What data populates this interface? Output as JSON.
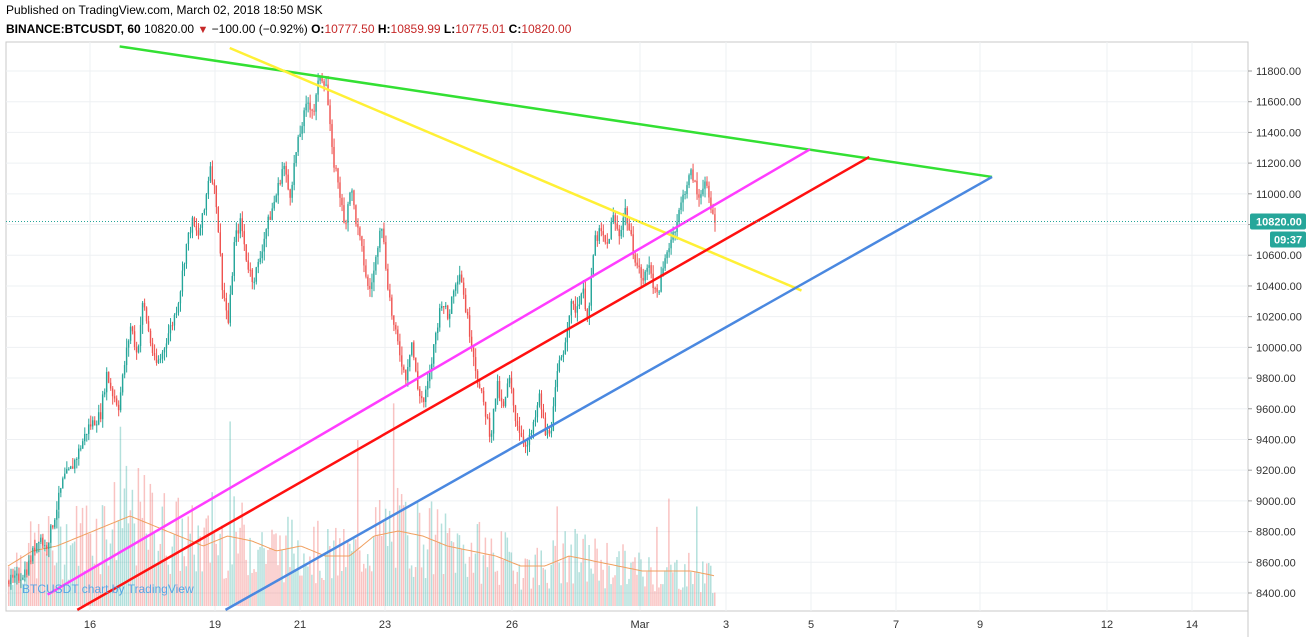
{
  "header": {
    "published": "Published on TradingView.com, March 02, 2018 18:50 MSK",
    "symbol": "BINANCE:BTCUSDT, 60",
    "last": "10820.00",
    "change_arrow": "▼",
    "change": "−100.00 (−0.92%)",
    "o_label": "O:",
    "o_value": "10777.50",
    "h_label": "H:",
    "h_value": "10859.99",
    "l_label": "L:",
    "l_value": "10775.01",
    "c_label": "C:",
    "c_value": "10820.00"
  },
  "watermark": "BTCUSDT chart by TradingView",
  "price_badge": {
    "value": "10820.00",
    "countdown": "09:37",
    "color": "#26a69a"
  },
  "chart_data": {
    "type": "candlestick",
    "timeframe": "60",
    "x_tick_labels": [
      "16",
      "19",
      "21",
      "23",
      "26",
      "Mar",
      "3",
      "5",
      "7",
      "9",
      "12",
      "14"
    ],
    "y_tick_labels": [
      "11800.00",
      "11600.00",
      "11400.00",
      "11200.00",
      "11000.00",
      "10800.00",
      "10600.00",
      "10400.00",
      "10200.00",
      "10000.00",
      "9800.00",
      "9600.00",
      "9400.00",
      "9200.00",
      "9000.00",
      "8800.00",
      "8600.00",
      "8400.00"
    ],
    "ylim": [
      8300,
      11950
    ],
    "last_price": 10820,
    "colors": {
      "up": "#26a69a",
      "down": "#ef5350",
      "volume_ma": "#f0a060"
    },
    "price_path": [
      [
        1,
        8480
      ],
      [
        3,
        8560
      ],
      [
        5,
        8780
      ],
      [
        6,
        8690
      ],
      [
        7,
        8820
      ],
      [
        9,
        9150
      ],
      [
        10,
        9190
      ],
      [
        11,
        9280
      ],
      [
        12,
        9380
      ],
      [
        13,
        9480
      ],
      [
        15,
        9560
      ],
      [
        16,
        9830
      ],
      [
        17,
        9700
      ],
      [
        18,
        9620
      ],
      [
        19,
        9900
      ],
      [
        20,
        10150
      ],
      [
        21,
        9950
      ],
      [
        22,
        10300
      ],
      [
        23,
        10080
      ],
      [
        24,
        9880
      ],
      [
        25,
        9940
      ],
      [
        26,
        10080
      ],
      [
        27,
        10180
      ],
      [
        28,
        10350
      ],
      [
        29,
        10650
      ],
      [
        30,
        10820
      ],
      [
        31,
        10720
      ],
      [
        32,
        10880
      ],
      [
        33,
        11200
      ],
      [
        34,
        10950
      ],
      [
        35,
        10400
      ],
      [
        36,
        10150
      ],
      [
        37,
        10700
      ],
      [
        38,
        10820
      ],
      [
        39,
        10560
      ],
      [
        40,
        10440
      ],
      [
        41,
        10550
      ],
      [
        42,
        10750
      ],
      [
        43,
        10880
      ],
      [
        44,
        11020
      ],
      [
        45,
        11200
      ],
      [
        46,
        10980
      ],
      [
        47,
        11250
      ],
      [
        48,
        11450
      ],
      [
        49,
        11600
      ],
      [
        50,
        11540
      ],
      [
        51,
        11780
      ],
      [
        52,
        11720
      ],
      [
        53,
        11250
      ],
      [
        54,
        11080
      ],
      [
        55,
        10780
      ],
      [
        56,
        11060
      ],
      [
        57,
        10800
      ],
      [
        58,
        10600
      ],
      [
        59,
        10350
      ],
      [
        60,
        10520
      ],
      [
        61,
        10860
      ],
      [
        62,
        10450
      ],
      [
        63,
        10150
      ],
      [
        64,
        9980
      ],
      [
        65,
        9800
      ],
      [
        66,
        10050
      ],
      [
        67,
        9730
      ],
      [
        68,
        9640
      ],
      [
        69,
        9820
      ],
      [
        70,
        10100
      ],
      [
        71,
        10320
      ],
      [
        72,
        10180
      ],
      [
        73,
        10420
      ],
      [
        74,
        10500
      ],
      [
        75,
        10220
      ],
      [
        76,
        10000
      ],
      [
        77,
        9750
      ],
      [
        78,
        9600
      ],
      [
        79,
        9420
      ],
      [
        80,
        9760
      ],
      [
        81,
        9580
      ],
      [
        82,
        9800
      ],
      [
        83,
        9550
      ],
      [
        84,
        9430
      ],
      [
        85,
        9360
      ],
      [
        86,
        9480
      ],
      [
        87,
        9680
      ],
      [
        88,
        9420
      ],
      [
        89,
        9500
      ],
      [
        90,
        9850
      ],
      [
        91,
        10000
      ],
      [
        92,
        10270
      ],
      [
        93,
        10250
      ],
      [
        94,
        10380
      ],
      [
        95,
        10190
      ],
      [
        96,
        10700
      ],
      [
        97,
        10750
      ],
      [
        98,
        10650
      ],
      [
        99,
        10850
      ],
      [
        100,
        10730
      ],
      [
        101,
        10900
      ],
      [
        102,
        10700
      ],
      [
        103,
        10530
      ],
      [
        104,
        10430
      ],
      [
        105,
        10560
      ],
      [
        106,
        10330
      ],
      [
        107,
        10450
      ],
      [
        108,
        10650
      ],
      [
        109,
        10760
      ],
      [
        110,
        10900
      ],
      [
        111,
        11060
      ],
      [
        112,
        11140
      ],
      [
        113,
        10960
      ],
      [
        114,
        11100
      ],
      [
        115,
        10900
      ],
      [
        116,
        10820
      ]
    ],
    "volume_profile": [
      [
        0,
        40
      ],
      [
        4,
        55
      ],
      [
        8,
        60
      ],
      [
        12,
        70
      ],
      [
        16,
        80
      ],
      [
        20,
        90
      ],
      [
        24,
        80
      ],
      [
        28,
        70
      ],
      [
        32,
        60
      ],
      [
        36,
        70
      ],
      [
        40,
        65
      ],
      [
        44,
        55
      ],
      [
        48,
        60
      ],
      [
        52,
        50
      ],
      [
        56,
        50
      ],
      [
        60,
        70
      ],
      [
        64,
        75
      ],
      [
        68,
        70
      ],
      [
        72,
        60
      ],
      [
        76,
        55
      ],
      [
        80,
        50
      ],
      [
        84,
        40
      ],
      [
        88,
        40
      ],
      [
        92,
        50
      ],
      [
        96,
        45
      ],
      [
        100,
        40
      ],
      [
        104,
        35
      ],
      [
        108,
        35
      ],
      [
        112,
        35
      ],
      [
        116,
        30
      ]
    ],
    "trendlines": [
      {
        "name": "green",
        "color": "#33e033",
        "from": [
          16.7,
          11960
        ],
        "to": [
          9.3,
          11110
        ]
      },
      {
        "name": "yellow",
        "color": "#fff036",
        "from": [
          19.3,
          11950
        ],
        "to": [
          4.8,
          10370
        ]
      },
      {
        "name": "magenta",
        "color": "#ff3dff",
        "from": [
          15.0,
          8390
        ],
        "to": [
          5.0,
          11290
        ]
      },
      {
        "name": "red",
        "color": "#ff1010",
        "from": [
          15.7,
          8290
        ],
        "to": [
          6.4,
          11240
        ]
      },
      {
        "name": "blue",
        "color": "#4a88e0",
        "from": [
          19.2,
          8290
        ],
        "to": [
          9.3,
          11110
        ]
      }
    ]
  }
}
